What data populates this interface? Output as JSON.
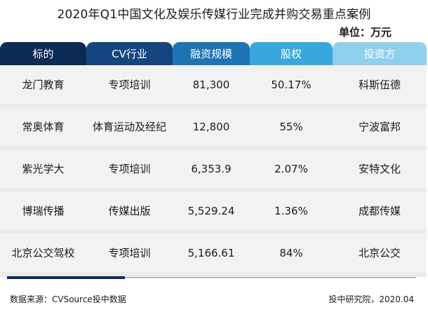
{
  "title": "2020年Q1中国文化及娱乐传媒行业完成并购交易重点案例",
  "unit": "单位：万元",
  "headers": [
    {
      "label": "标的",
      "color": "#0b2a56"
    },
    {
      "label": "CV行业",
      "color": "#14457e"
    },
    {
      "label": "融资规模",
      "color": "#1d74b5"
    },
    {
      "label": "股权",
      "color": "#39a7de"
    },
    {
      "label": "投资方",
      "color": "#8fd0ef"
    }
  ],
  "rows": [
    [
      "龙门教育",
      "专项培训",
      "81,300",
      "50.17%",
      "科斯伍德"
    ],
    [
      "常奥体育",
      "体育运动及经纪",
      "12,800",
      "55%",
      "宁波富邦"
    ],
    [
      "紫光学大",
      "专项培训",
      "6,353.9",
      "2.07%",
      "安特文化"
    ],
    [
      "博瑞传播",
      "传媒出版",
      "5,529.24",
      "1.36%",
      "成都传媒"
    ],
    [
      "北京公交驾校",
      "专项培训",
      "5,166.61",
      "84%",
      "北京公交"
    ]
  ],
  "footer": {
    "source": "数据来源：CVSource投中数据",
    "credit": "投中研究院，2020.04"
  }
}
